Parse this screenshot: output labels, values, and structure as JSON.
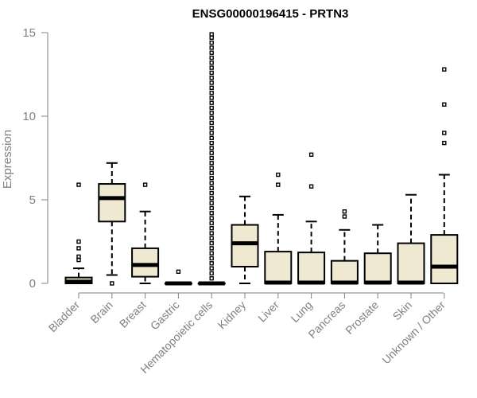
{
  "chart_data": {
    "type": "box",
    "title": "ENSG00000196415 - PRTN3",
    "xlabel": "",
    "ylabel": "Expression",
    "ylim": [
      0,
      15
    ],
    "yticks": [
      0,
      5,
      10,
      15
    ],
    "grid": false,
    "categories": [
      "Bladder",
      "Brain",
      "Breast",
      "Gastric",
      "Hematopoietic cells",
      "Kidney",
      "Liver",
      "Lung",
      "Pancreas",
      "Prostate",
      "Skin",
      "Unknown / Other"
    ],
    "boxes": [
      {
        "category": "Bladder",
        "q1": 0.0,
        "median": 0.1,
        "q3": 0.35,
        "whisker_low": 0.0,
        "whisker_high": 0.9,
        "outliers": [
          1.4,
          1.6,
          2.1,
          2.5,
          5.9
        ]
      },
      {
        "category": "Brain",
        "q1": 3.7,
        "median": 5.1,
        "q3": 5.95,
        "whisker_low": 0.5,
        "whisker_high": 7.2,
        "outliers": [
          0.0
        ]
      },
      {
        "category": "Breast",
        "q1": 0.4,
        "median": 1.1,
        "q3": 2.1,
        "whisker_low": 0.0,
        "whisker_high": 4.3,
        "outliers": [
          5.9
        ]
      },
      {
        "category": "Gastric",
        "q1": 0.0,
        "median": 0.0,
        "q3": 0.0,
        "whisker_low": 0.0,
        "whisker_high": 0.0,
        "outliers": [
          0.7
        ]
      },
      {
        "category": "Hematopoietic cells",
        "q1": 0.0,
        "median": 0.0,
        "q3": 0.0,
        "whisker_low": 0.0,
        "whisker_high": 0.0,
        "outliers": [
          0.3,
          0.6,
          0.9,
          1.2,
          1.5,
          1.8,
          2.1,
          2.4,
          2.7,
          3.0,
          3.3,
          3.6,
          3.9,
          4.2,
          4.5,
          4.8,
          5.1,
          5.4,
          5.7,
          6.0,
          6.3,
          6.6,
          6.9,
          7.2,
          7.5,
          7.8,
          8.1,
          8.4,
          8.7,
          9.0,
          9.3,
          9.6,
          9.9,
          10.2,
          10.5,
          10.8,
          11.1,
          11.4,
          11.7,
          12.0,
          12.3,
          12.6,
          12.9,
          13.2,
          13.5,
          13.8,
          14.1,
          14.4,
          14.7,
          14.9
        ]
      },
      {
        "category": "Kidney",
        "q1": 1.0,
        "median": 2.4,
        "q3": 3.5,
        "whisker_low": 0.0,
        "whisker_high": 5.2,
        "outliers": []
      },
      {
        "category": "Liver",
        "q1": 0.0,
        "median": 0.05,
        "q3": 1.9,
        "whisker_low": 0.0,
        "whisker_high": 4.1,
        "outliers": [
          5.9,
          6.5
        ]
      },
      {
        "category": "Lung",
        "q1": 0.0,
        "median": 0.05,
        "q3": 1.85,
        "whisker_low": 0.0,
        "whisker_high": 3.7,
        "outliers": [
          5.8,
          7.7
        ]
      },
      {
        "category": "Pancreas",
        "q1": 0.0,
        "median": 0.05,
        "q3": 1.35,
        "whisker_low": 0.0,
        "whisker_high": 3.2,
        "outliers": [
          4.0,
          4.3
        ]
      },
      {
        "category": "Prostate",
        "q1": 0.0,
        "median": 0.05,
        "q3": 1.8,
        "whisker_low": 0.0,
        "whisker_high": 3.5,
        "outliers": []
      },
      {
        "category": "Skin",
        "q1": 0.0,
        "median": 0.05,
        "q3": 2.4,
        "whisker_low": 0.0,
        "whisker_high": 5.3,
        "outliers": []
      },
      {
        "category": "Unknown / Other",
        "q1": 0.0,
        "median": 1.0,
        "q3": 2.9,
        "whisker_low": 0.0,
        "whisker_high": 6.5,
        "outliers": [
          8.4,
          9.0,
          10.7,
          12.8
        ]
      }
    ],
    "colors": {
      "box_fill": "#efe9d1",
      "stroke": "#000000",
      "axis": "#808080"
    }
  }
}
